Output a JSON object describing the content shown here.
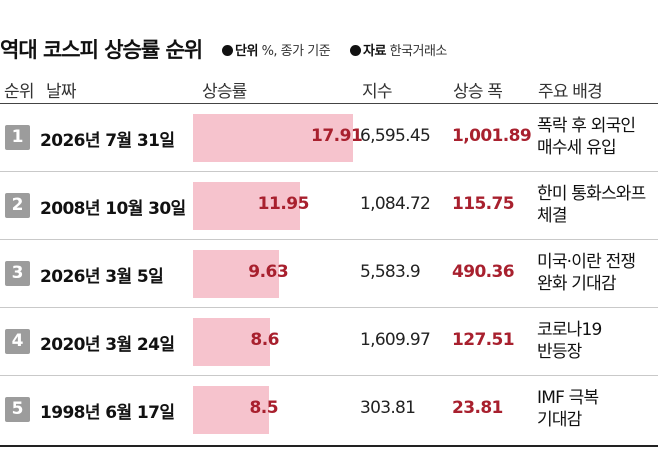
{
  "title": "역대 코스피 상승률 순위",
  "meta": {
    "unit_label": "단위",
    "unit_text": "%, 종가 기준",
    "source_label": "자료",
    "source_text": "한국거래소"
  },
  "columns": {
    "rank": "순위",
    "date": "날짜",
    "rise": "상승률",
    "index": "지수",
    "change": "상승 폭",
    "background": "주요 배경"
  },
  "colors": {
    "bar": "#f6c3cd",
    "value_text": "#a8202e",
    "rank_badge": "#9c9c9c"
  },
  "chart_data": {
    "type": "bar",
    "orientation": "horizontal",
    "categories": [
      "2026년 7월 31일",
      "2008년 10월 30일",
      "2026년 3월 5일",
      "2020년 3월 24일",
      "1998년 6월 17일"
    ],
    "values": [
      17.91,
      11.95,
      9.63,
      8.6,
      8.5
    ],
    "value_labels": [
      "17.91",
      "11.95",
      "9.63",
      "8.6",
      "8.5"
    ],
    "rows": [
      {
        "rank": "1",
        "date": "2026년 7월 31일",
        "rise": "17.91",
        "index": "6,595.45",
        "change": "1,001.89",
        "background": [
          "폭락 후 외국인",
          "매수세 유입"
        ]
      },
      {
        "rank": "2",
        "date": "2008년 10월 30일",
        "rise": "11.95",
        "index": "1,084.72",
        "change": "115.75",
        "background": [
          "한미 통화스와프",
          "체결"
        ]
      },
      {
        "rank": "3",
        "date": "2026년 3월 5일",
        "rise": "9.63",
        "index": "5,583.9",
        "change": "490.36",
        "background": [
          "미국·이란 전쟁",
          "완화 기대감"
        ]
      },
      {
        "rank": "4",
        "date": "2020년 3월 24일",
        "rise": "8.6",
        "index": "1,609.97",
        "change": "127.51",
        "background": [
          "코로나19",
          "반등장"
        ]
      },
      {
        "rank": "5",
        "date": "1998년 6월 17일",
        "rise": "8.5",
        "index": "303.81",
        "change": "23.81",
        "background": [
          "IMF 극복",
          "기대감"
        ]
      }
    ]
  }
}
